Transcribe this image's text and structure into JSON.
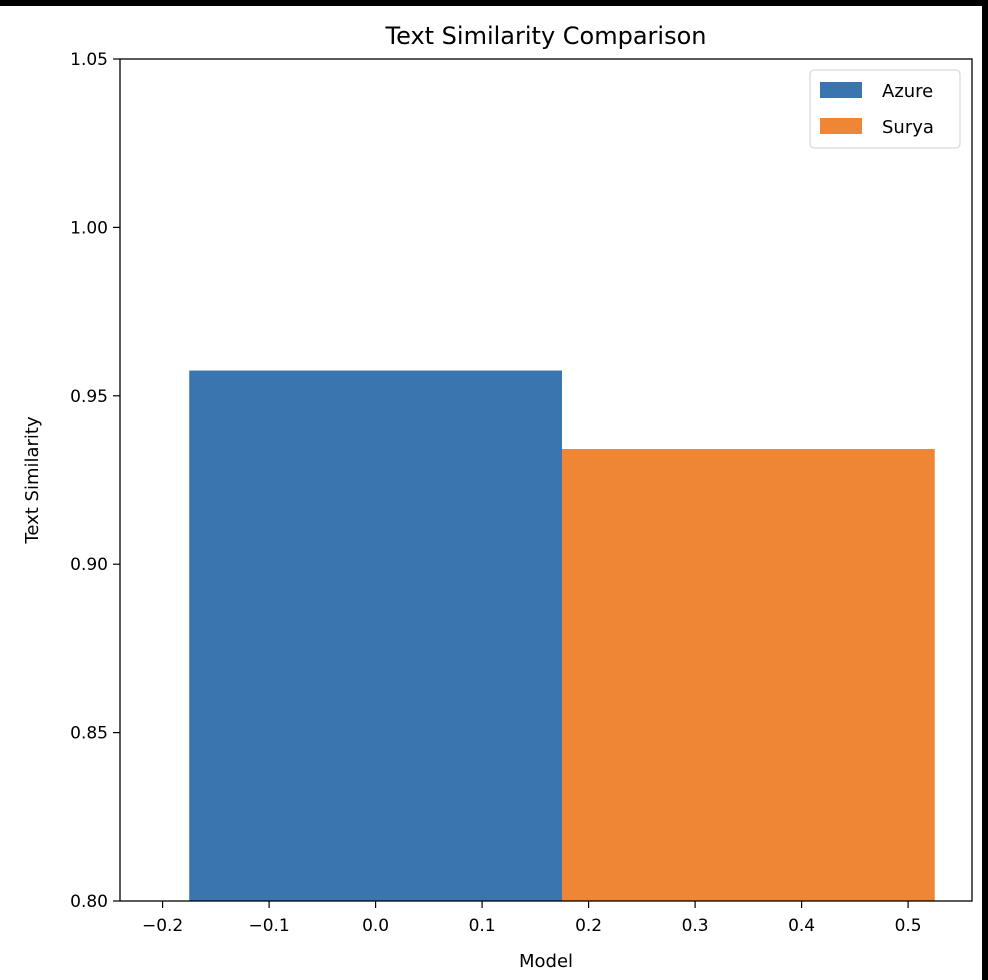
{
  "chart_data": {
    "type": "bar",
    "title": "Text Similarity Comparison",
    "xlabel": "Model",
    "ylabel": "Text Similarity",
    "xlim": [
      -0.24,
      0.56
    ],
    "ylim": [
      0.8,
      1.05
    ],
    "xticks": [
      "−0.2",
      "−0.1",
      "0.0",
      "0.1",
      "0.2",
      "0.3",
      "0.4",
      "0.5"
    ],
    "xtick_values": [
      -0.2,
      -0.1,
      0.0,
      0.1,
      0.2,
      0.3,
      0.4,
      0.5
    ],
    "yticks": [
      "0.80",
      "0.85",
      "0.90",
      "0.95",
      "1.00",
      "1.05"
    ],
    "ytick_values": [
      0.8,
      0.85,
      0.9,
      0.95,
      1.0,
      1.05
    ],
    "series": [
      {
        "name": "Azure",
        "x": 0.0,
        "width": 0.35,
        "value": 0.9575,
        "color": "#3a75b0"
      },
      {
        "name": "Surya",
        "x": 0.35,
        "width": 0.35,
        "value": 0.9342,
        "color": "#ef8636"
      }
    ],
    "legend": "top-right",
    "grid": false
  }
}
